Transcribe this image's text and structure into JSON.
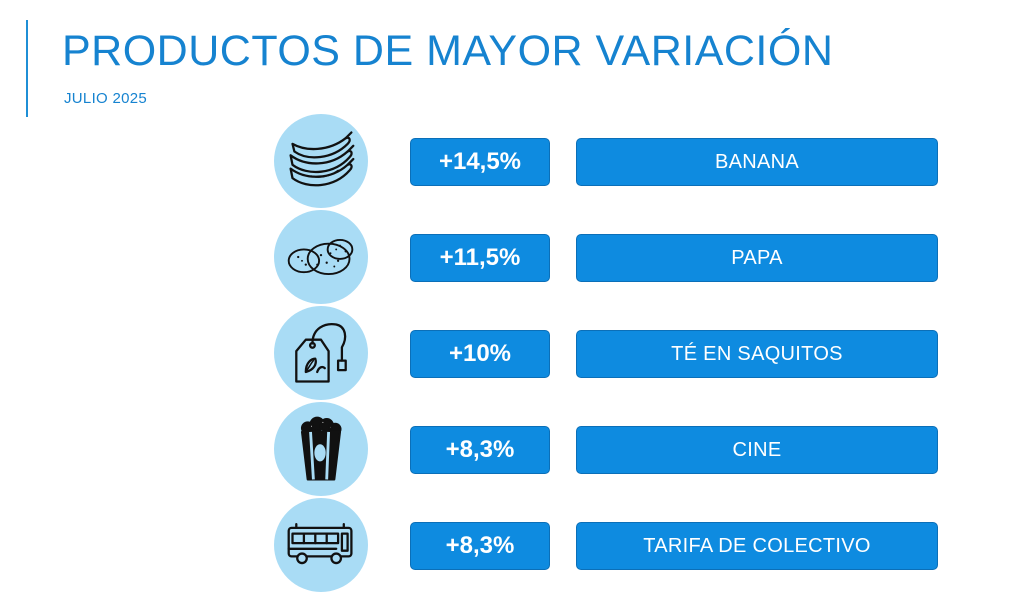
{
  "header": {
    "title": "PRODUCTOS DE MAYOR VARIACIÓN",
    "subtitle": "JULIO 2025"
  },
  "colors": {
    "accent": "#1683d0",
    "box": "#0e8be0",
    "circle": "#a9dcf5"
  },
  "items": [
    {
      "icon": "banana-icon",
      "change": "+14,5%",
      "name": "BANANA"
    },
    {
      "icon": "potato-icon",
      "change": "+11,5%",
      "name": "PAPA"
    },
    {
      "icon": "tea-bag-icon",
      "change": "+10%",
      "name": "TÉ EN SAQUITOS"
    },
    {
      "icon": "popcorn-icon",
      "change": "+8,3%",
      "name": "CINE"
    },
    {
      "icon": "bus-icon",
      "change": "+8,3%",
      "name": "TARIFA DE COLECTIVO"
    }
  ]
}
